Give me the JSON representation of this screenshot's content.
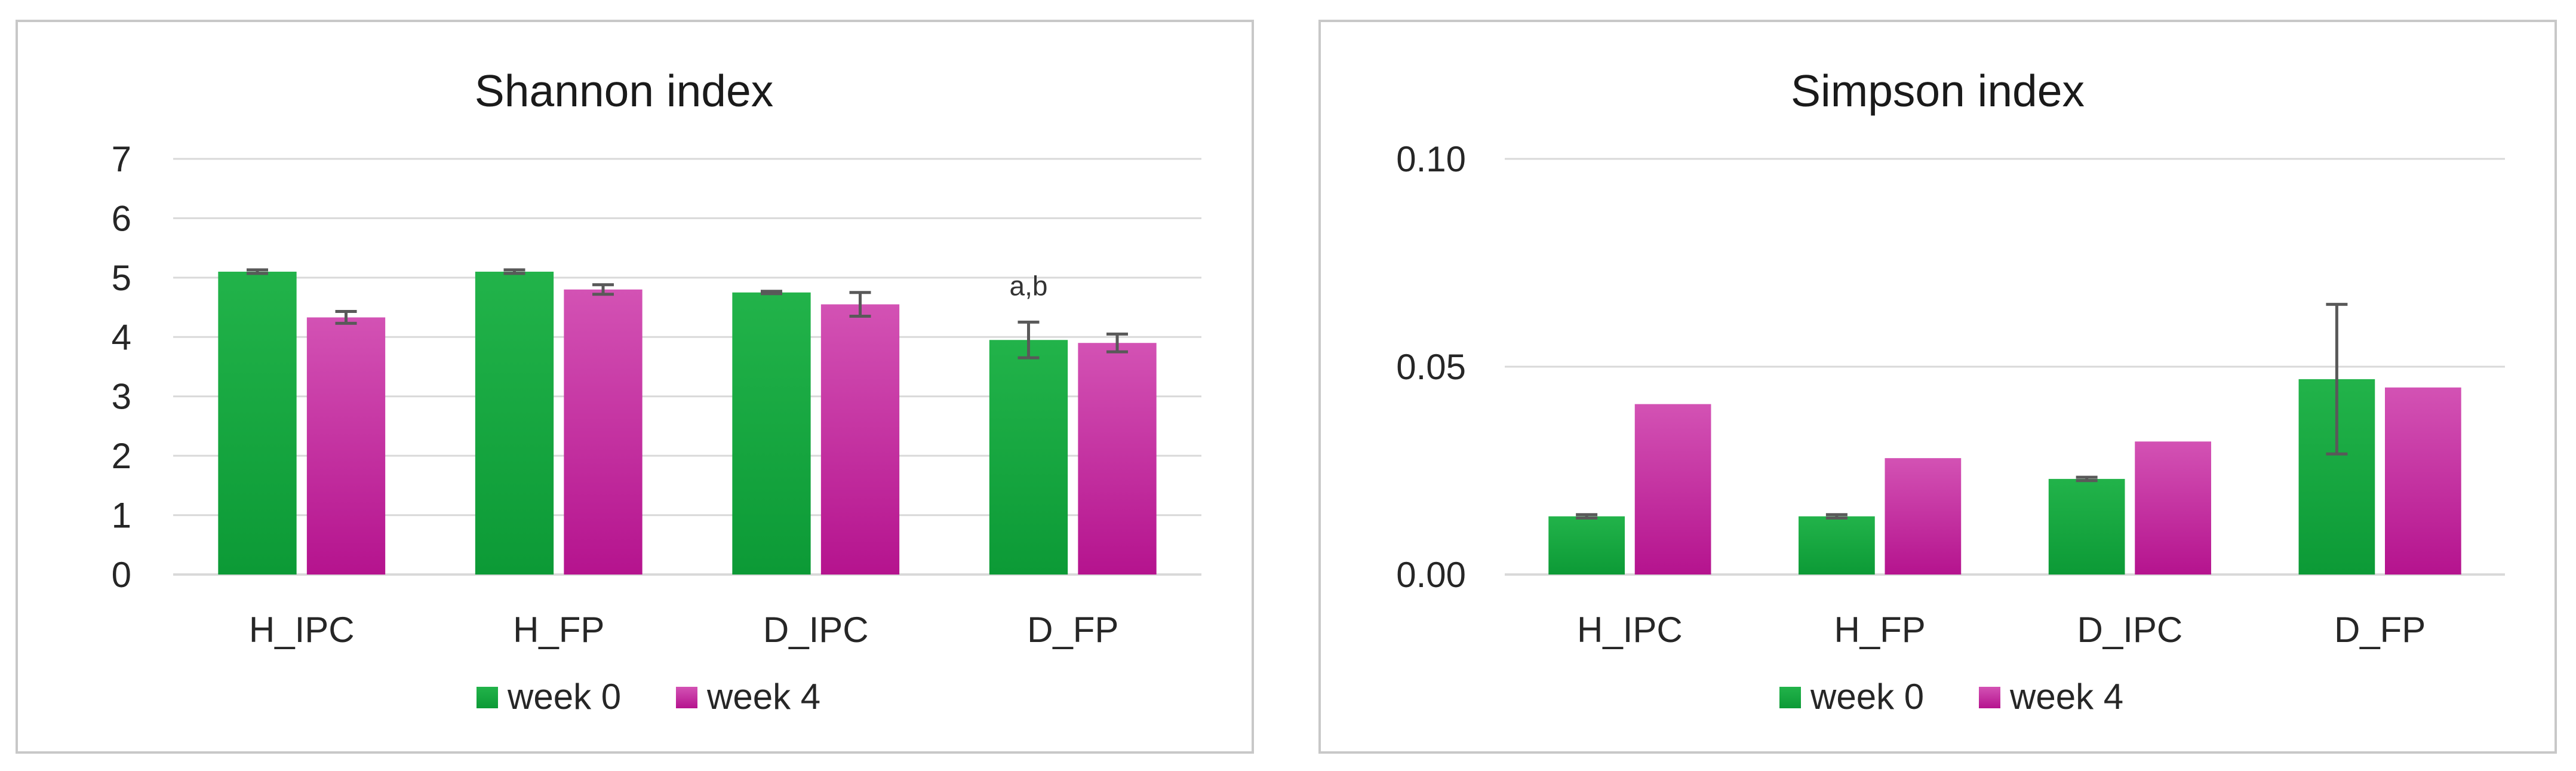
{
  "colors": {
    "week0_top": "#22b34a",
    "week0_bottom": "#0c9a36",
    "week4_top": "#d352b4",
    "week4_bottom": "#b5138e",
    "grid": "#d9d9d9",
    "frame": "#c8c8c8",
    "errorbar": "#595959"
  },
  "chart_data": [
    {
      "type": "bar",
      "title": "Shannon index",
      "categories": [
        "H_IPC",
        "H_FP",
        "D_IPC",
        "D_FP"
      ],
      "series": [
        {
          "name": "week 0",
          "values": [
            5.1,
            5.1,
            4.75,
            3.95
          ],
          "error": [
            0.03,
            0.03,
            0.02,
            0.3
          ]
        },
        {
          "name": "week 4",
          "values": [
            4.33,
            4.8,
            4.55,
            3.9
          ],
          "error": [
            0.1,
            0.08,
            0.2,
            0.15
          ]
        }
      ],
      "ylim": [
        0,
        7
      ],
      "yticks": [
        0,
        1,
        2,
        3,
        4,
        5,
        6,
        7
      ],
      "ytick_labels": [
        "0",
        "1",
        "2",
        "3",
        "4",
        "5",
        "6",
        "7"
      ],
      "grid": true,
      "legend_position": "bottom",
      "annotations": [
        {
          "category": "D_FP",
          "series": "week 0",
          "text": "a,b"
        }
      ]
    },
    {
      "type": "bar",
      "title": "Simpson index",
      "categories": [
        "H_IPC",
        "H_FP",
        "D_IPC",
        "D_FP"
      ],
      "series": [
        {
          "name": "week 0",
          "values": [
            0.014,
            0.014,
            0.023,
            0.047
          ],
          "error": [
            0.0004,
            0.0004,
            0.0004,
            0.018
          ]
        },
        {
          "name": "week 4",
          "values": [
            0.041,
            0.028,
            0.032,
            0.045
          ],
          "error": [
            0,
            0,
            0,
            0
          ]
        }
      ],
      "ylim": [
        0,
        0.1
      ],
      "yticks": [
        0,
        0.05,
        0.1
      ],
      "ytick_labels": [
        "0.00",
        "0.05",
        "0.10"
      ],
      "grid": true,
      "legend_position": "bottom",
      "annotations": []
    }
  ]
}
